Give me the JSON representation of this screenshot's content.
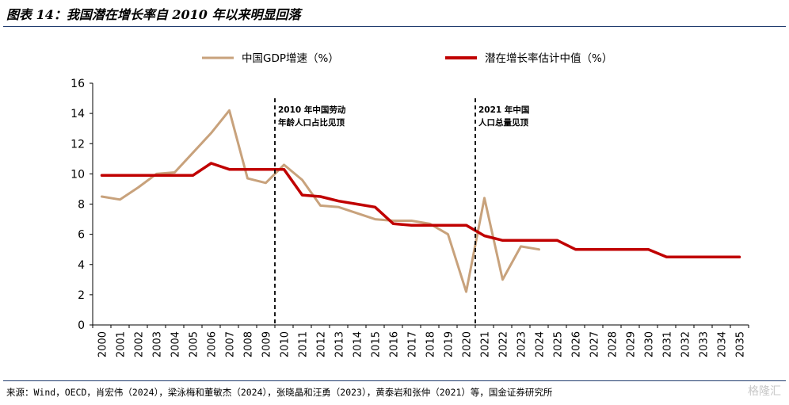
{
  "header": {
    "title": "图表 14：我国潜在增长率自 2010 年以来明显回落"
  },
  "chart_data": {
    "type": "line",
    "title": "",
    "xlabel": "",
    "ylabel": "",
    "ylim": [
      0,
      16
    ],
    "yticks": [
      0,
      2,
      4,
      6,
      8,
      10,
      12,
      14,
      16
    ],
    "grid": false,
    "legend_position": "top",
    "categories": [
      "2000",
      "2001",
      "2002",
      "2003",
      "2004",
      "2005",
      "2006",
      "2007",
      "2008",
      "2009",
      "2010",
      "2011",
      "2012",
      "2013",
      "2014",
      "2015",
      "2016",
      "2017",
      "2018",
      "2019",
      "2020",
      "2021",
      "2022",
      "2023",
      "2024",
      "2025",
      "2026",
      "2027",
      "2028",
      "2029",
      "2030",
      "2031",
      "2032",
      "2033",
      "2034",
      "2035"
    ],
    "series": [
      {
        "name": "中国GDP增速（%）",
        "color": "#c8a27c",
        "values": [
          8.5,
          8.3,
          9.1,
          10.0,
          10.1,
          11.4,
          12.7,
          14.2,
          9.7,
          9.4,
          10.6,
          9.6,
          7.9,
          7.8,
          7.4,
          7.0,
          6.9,
          6.9,
          6.7,
          6.0,
          2.2,
          8.4,
          3.0,
          5.2,
          5.0,
          null,
          null,
          null,
          null,
          null,
          null,
          null,
          null,
          null,
          null,
          null
        ]
      },
      {
        "name": "潜在增长率估计中值（%）",
        "color": "#c00000",
        "values": [
          9.9,
          9.9,
          9.9,
          9.9,
          9.9,
          9.9,
          10.7,
          10.3,
          10.3,
          10.3,
          10.3,
          8.6,
          8.5,
          8.2,
          8.0,
          7.8,
          6.7,
          6.6,
          6.6,
          6.6,
          6.6,
          5.9,
          5.6,
          5.6,
          5.6,
          5.6,
          5.0,
          5.0,
          5.0,
          5.0,
          5.0,
          4.5,
          4.5,
          4.5,
          4.5,
          4.5
        ]
      }
    ],
    "annotations": [
      {
        "at": "2010",
        "lines": [
          "2010 年中国劳动",
          "年龄人口占比见顶"
        ]
      },
      {
        "at": "2021",
        "lines": [
          "2021 年中国",
          "人口总量见顶"
        ]
      }
    ]
  },
  "footer": {
    "source": "来源：Wind，OECD，肖宏伟（2024），梁泳梅和董敏杰（2024），张晓晶和汪勇（2023），黄泰岩和张仲（2021）等，国金证券研究所",
    "watermark": "格隆汇"
  }
}
